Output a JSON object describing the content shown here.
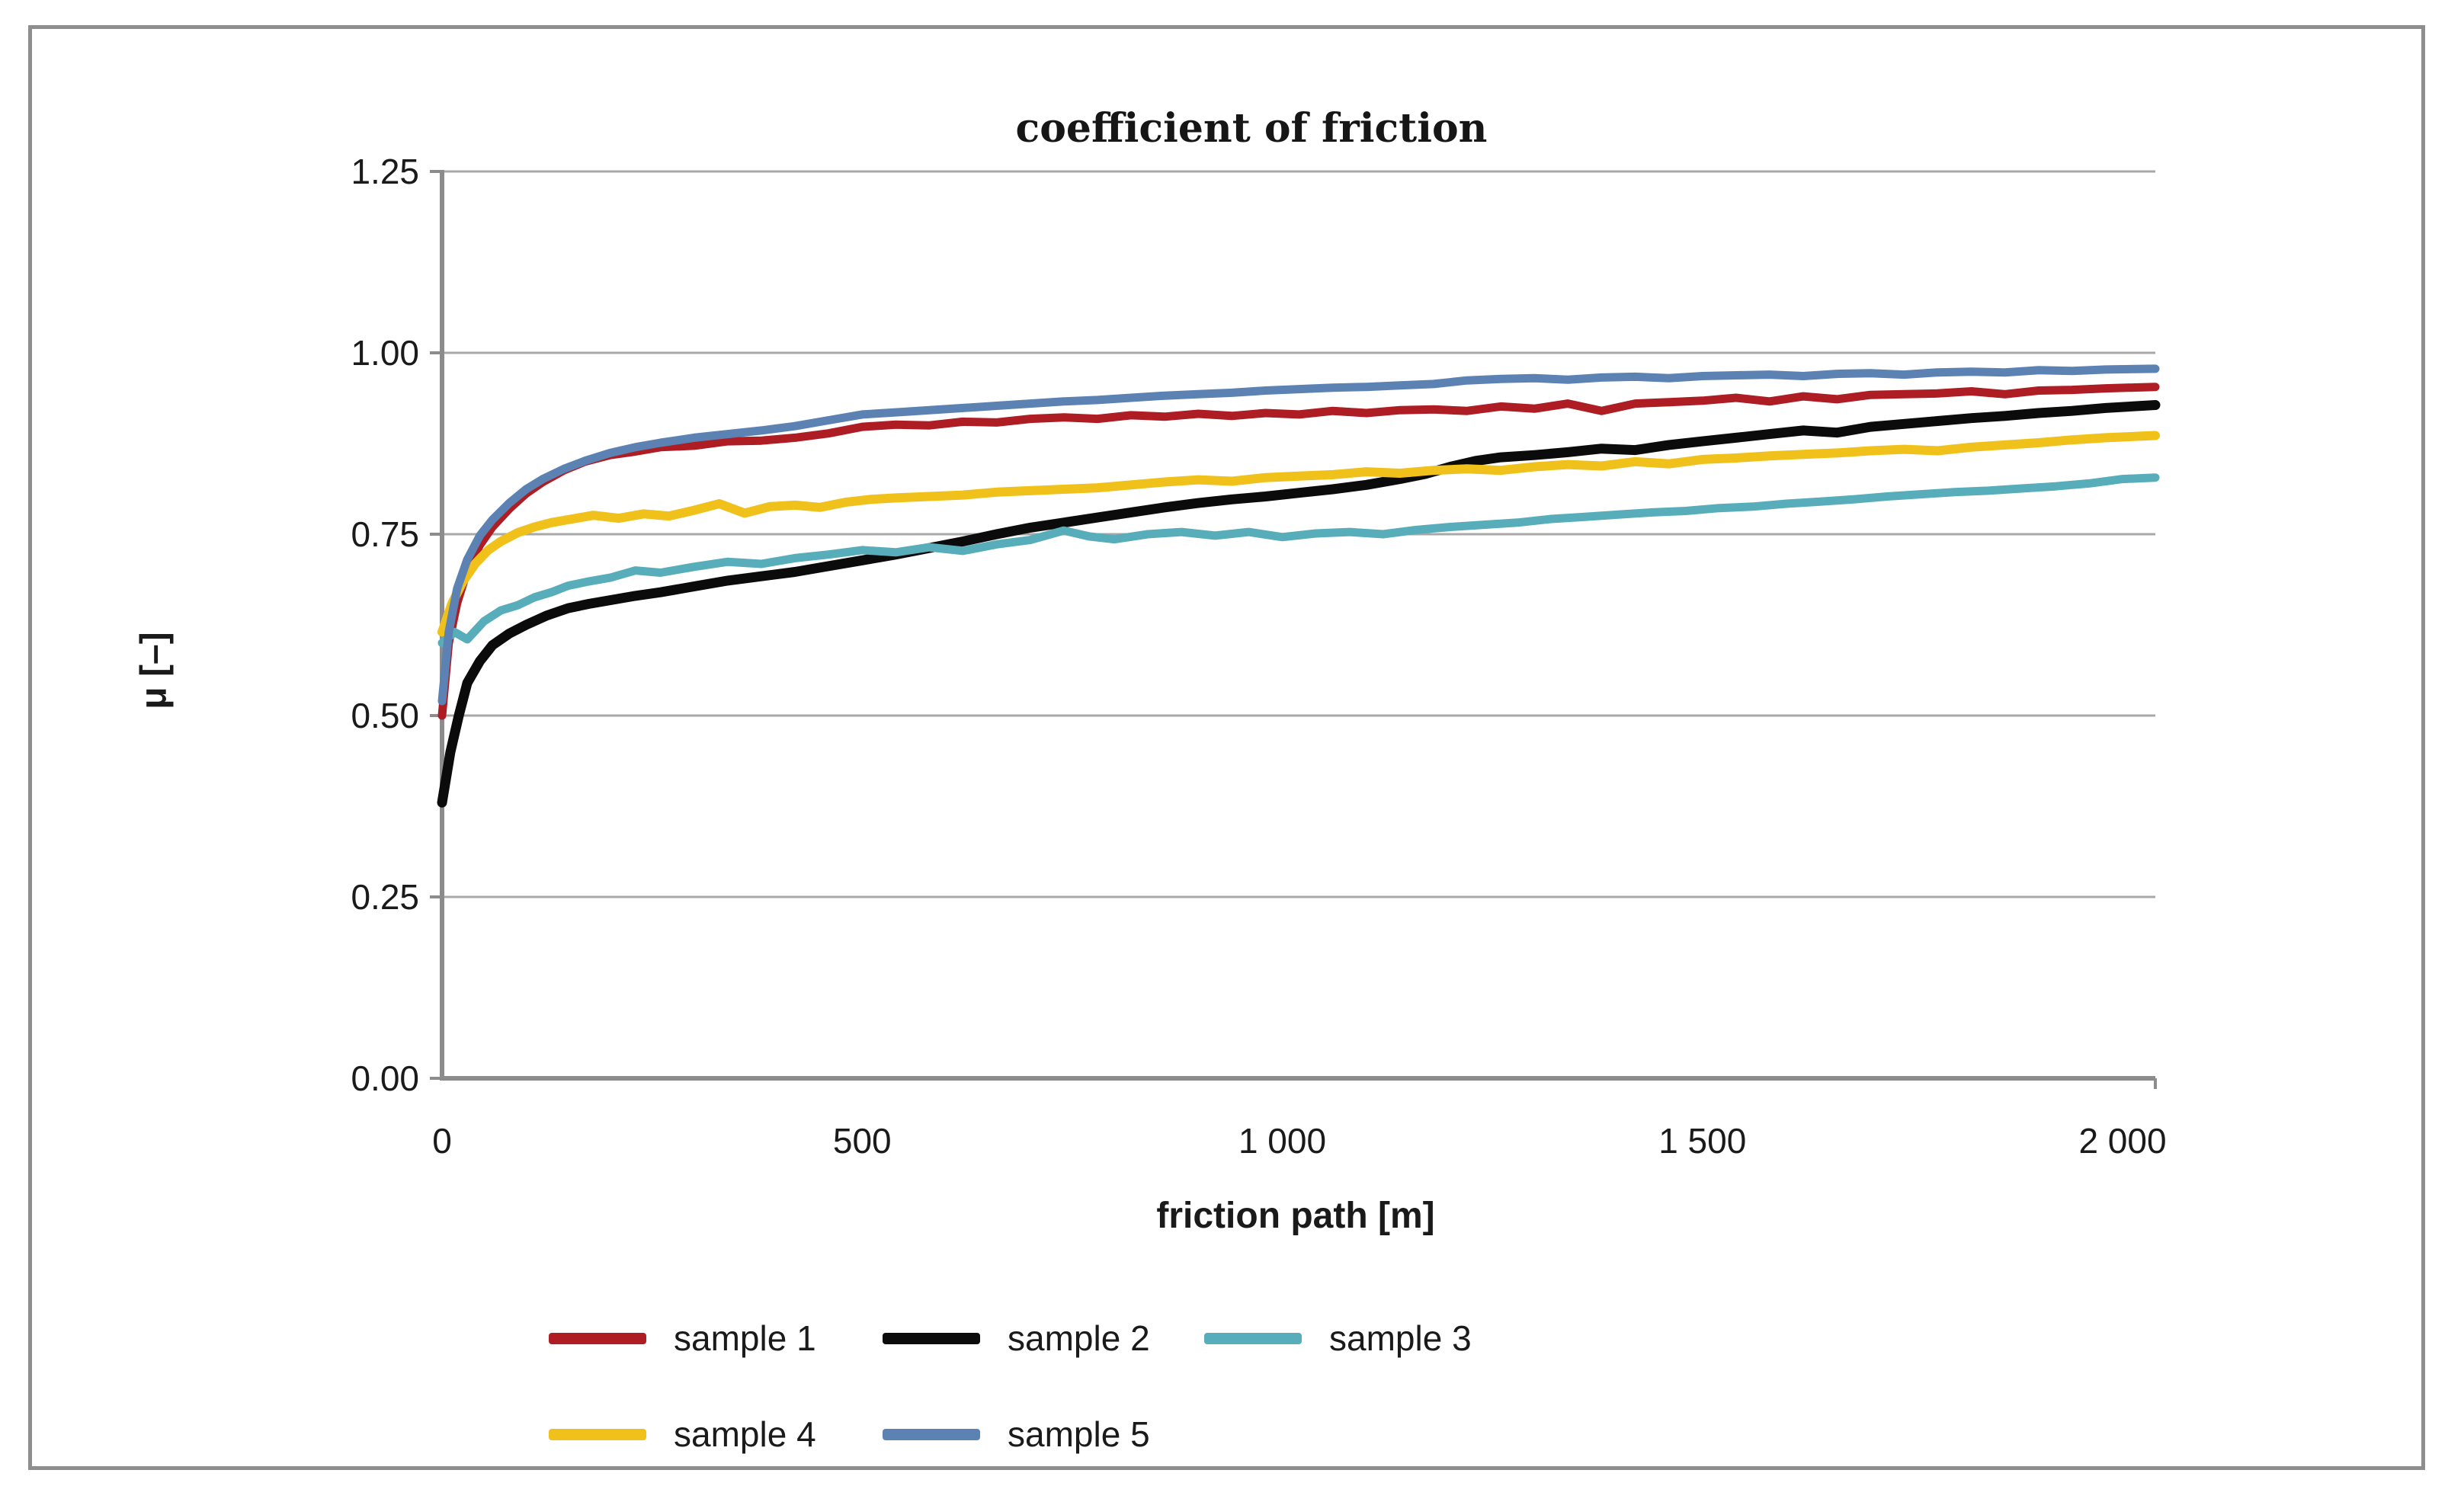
{
  "figure": {
    "title": "coefficient of friction",
    "x_axis": {
      "label": "friction path [m]",
      "ticks": [
        {
          "value": 0,
          "label": "0"
        },
        {
          "value": 500,
          "label": "500"
        },
        {
          "value": 1000,
          "label": "1 000"
        },
        {
          "value": 1500,
          "label": "1 500"
        },
        {
          "value": 2000,
          "label": "2 000"
        }
      ]
    },
    "y_axis": {
      "label": "μ [–]",
      "ticks": [
        {
          "value": 0,
          "label": "0.00"
        },
        {
          "value": 0.25,
          "label": "0.25"
        },
        {
          "value": 0.5,
          "label": "0.50"
        },
        {
          "value": 0.75,
          "label": "0.75"
        },
        {
          "value": 1,
          "label": "1.00"
        },
        {
          "value": 1.25,
          "label": "1.25"
        }
      ]
    },
    "colors": {
      "axis": "#8c8c8c",
      "grid": "#a8a8a8",
      "border": "#8e8e8e",
      "text": "#1a1a1a",
      "background": "#ffffff"
    }
  },
  "legend": {
    "rows": [
      [
        0,
        1,
        2
      ],
      [
        3,
        4
      ]
    ]
  },
  "chart_data": {
    "type": "line",
    "title": "coefficient of friction",
    "xlabel": "friction path [m]",
    "ylabel": "μ [–]",
    "xlim": [
      0,
      2039
    ],
    "ylim": [
      0,
      1.25
    ],
    "x_ticks": [
      0,
      500,
      1000,
      1500,
      2000
    ],
    "y_ticks": [
      0,
      0.25,
      0.5,
      0.75,
      1,
      1.25
    ],
    "grid": "horizontal",
    "legend_position": "bottom-left",
    "series": [
      {
        "name": "sample 1",
        "color": "#ae1c24",
        "points": [
          [
            0,
            0.5
          ],
          [
            8,
            0.6
          ],
          [
            18,
            0.655
          ],
          [
            30,
            0.7
          ],
          [
            45,
            0.735
          ],
          [
            60,
            0.76
          ],
          [
            80,
            0.785
          ],
          [
            100,
            0.806
          ],
          [
            120,
            0.822
          ],
          [
            145,
            0.838
          ],
          [
            170,
            0.85
          ],
          [
            200,
            0.859
          ],
          [
            230,
            0.864
          ],
          [
            260,
            0.87
          ],
          [
            300,
            0.872
          ],
          [
            340,
            0.878
          ],
          [
            380,
            0.879
          ],
          [
            420,
            0.883
          ],
          [
            460,
            0.889
          ],
          [
            500,
            0.898
          ],
          [
            540,
            0.901
          ],
          [
            580,
            0.9
          ],
          [
            620,
            0.905
          ],
          [
            660,
            0.904
          ],
          [
            700,
            0.909
          ],
          [
            740,
            0.911
          ],
          [
            780,
            0.909
          ],
          [
            820,
            0.914
          ],
          [
            860,
            0.912
          ],
          [
            900,
            0.916
          ],
          [
            940,
            0.913
          ],
          [
            980,
            0.917
          ],
          [
            1020,
            0.915
          ],
          [
            1060,
            0.92
          ],
          [
            1100,
            0.917
          ],
          [
            1140,
            0.921
          ],
          [
            1180,
            0.922
          ],
          [
            1220,
            0.92
          ],
          [
            1260,
            0.926
          ],
          [
            1300,
            0.923
          ],
          [
            1340,
            0.93
          ],
          [
            1380,
            0.92
          ],
          [
            1420,
            0.93
          ],
          [
            1460,
            0.932
          ],
          [
            1500,
            0.934
          ],
          [
            1540,
            0.938
          ],
          [
            1580,
            0.933
          ],
          [
            1620,
            0.94
          ],
          [
            1660,
            0.936
          ],
          [
            1700,
            0.942
          ],
          [
            1740,
            0.943
          ],
          [
            1780,
            0.944
          ],
          [
            1820,
            0.947
          ],
          [
            1860,
            0.943
          ],
          [
            1900,
            0.948
          ],
          [
            1940,
            0.949
          ],
          [
            1980,
            0.951
          ],
          [
            2039,
            0.953
          ]
        ]
      },
      {
        "name": "sample 2",
        "color": "#0b0b0b",
        "points": [
          [
            0,
            0.38
          ],
          [
            10,
            0.45
          ],
          [
            20,
            0.5
          ],
          [
            30,
            0.545
          ],
          [
            45,
            0.575
          ],
          [
            60,
            0.597
          ],
          [
            80,
            0.613
          ],
          [
            100,
            0.625
          ],
          [
            125,
            0.638
          ],
          [
            150,
            0.648
          ],
          [
            175,
            0.654
          ],
          [
            200,
            0.659
          ],
          [
            230,
            0.665
          ],
          [
            260,
            0.67
          ],
          [
            300,
            0.678
          ],
          [
            340,
            0.686
          ],
          [
            380,
            0.692
          ],
          [
            420,
            0.698
          ],
          [
            460,
            0.706
          ],
          [
            500,
            0.714
          ],
          [
            540,
            0.722
          ],
          [
            580,
            0.731
          ],
          [
            620,
            0.74
          ],
          [
            660,
            0.75
          ],
          [
            700,
            0.759
          ],
          [
            740,
            0.766
          ],
          [
            780,
            0.773
          ],
          [
            820,
            0.78
          ],
          [
            860,
            0.787
          ],
          [
            900,
            0.793
          ],
          [
            940,
            0.798
          ],
          [
            980,
            0.802
          ],
          [
            1020,
            0.807
          ],
          [
            1060,
            0.812
          ],
          [
            1100,
            0.818
          ],
          [
            1140,
            0.826
          ],
          [
            1170,
            0.833
          ],
          [
            1200,
            0.843
          ],
          [
            1230,
            0.851
          ],
          [
            1260,
            0.856
          ],
          [
            1300,
            0.859
          ],
          [
            1340,
            0.863
          ],
          [
            1380,
            0.868
          ],
          [
            1420,
            0.866
          ],
          [
            1460,
            0.873
          ],
          [
            1500,
            0.878
          ],
          [
            1540,
            0.883
          ],
          [
            1580,
            0.888
          ],
          [
            1620,
            0.893
          ],
          [
            1660,
            0.89
          ],
          [
            1700,
            0.898
          ],
          [
            1740,
            0.902
          ],
          [
            1780,
            0.906
          ],
          [
            1820,
            0.91
          ],
          [
            1860,
            0.913
          ],
          [
            1900,
            0.917
          ],
          [
            1940,
            0.92
          ],
          [
            1980,
            0.924
          ],
          [
            2039,
            0.928
          ]
        ]
      },
      {
        "name": "sample 3",
        "color": "#58adba",
        "points": [
          [
            0,
            0.6
          ],
          [
            15,
            0.615
          ],
          [
            30,
            0.605
          ],
          [
            50,
            0.63
          ],
          [
            70,
            0.645
          ],
          [
            90,
            0.652
          ],
          [
            110,
            0.663
          ],
          [
            130,
            0.67
          ],
          [
            150,
            0.679
          ],
          [
            175,
            0.685
          ],
          [
            200,
            0.69
          ],
          [
            230,
            0.7
          ],
          [
            260,
            0.697
          ],
          [
            300,
            0.705
          ],
          [
            340,
            0.712
          ],
          [
            380,
            0.709
          ],
          [
            420,
            0.717
          ],
          [
            460,
            0.722
          ],
          [
            500,
            0.728
          ],
          [
            540,
            0.725
          ],
          [
            580,
            0.732
          ],
          [
            620,
            0.727
          ],
          [
            660,
            0.736
          ],
          [
            700,
            0.742
          ],
          [
            740,
            0.755
          ],
          [
            770,
            0.747
          ],
          [
            800,
            0.743
          ],
          [
            840,
            0.75
          ],
          [
            880,
            0.753
          ],
          [
            920,
            0.748
          ],
          [
            960,
            0.753
          ],
          [
            1000,
            0.746
          ],
          [
            1040,
            0.751
          ],
          [
            1080,
            0.753
          ],
          [
            1120,
            0.75
          ],
          [
            1160,
            0.756
          ],
          [
            1200,
            0.76
          ],
          [
            1240,
            0.763
          ],
          [
            1280,
            0.766
          ],
          [
            1320,
            0.771
          ],
          [
            1360,
            0.774
          ],
          [
            1400,
            0.777
          ],
          [
            1440,
            0.78
          ],
          [
            1480,
            0.782
          ],
          [
            1520,
            0.786
          ],
          [
            1560,
            0.788
          ],
          [
            1600,
            0.792
          ],
          [
            1640,
            0.795
          ],
          [
            1680,
            0.798
          ],
          [
            1720,
            0.802
          ],
          [
            1760,
            0.805
          ],
          [
            1800,
            0.808
          ],
          [
            1840,
            0.81
          ],
          [
            1880,
            0.813
          ],
          [
            1920,
            0.816
          ],
          [
            1960,
            0.82
          ],
          [
            2000,
            0.826
          ],
          [
            2039,
            0.828
          ]
        ]
      },
      {
        "name": "sample 4",
        "color": "#efc11a",
        "points": [
          [
            0,
            0.615
          ],
          [
            12,
            0.655
          ],
          [
            25,
            0.685
          ],
          [
            40,
            0.71
          ],
          [
            55,
            0.728
          ],
          [
            70,
            0.74
          ],
          [
            90,
            0.752
          ],
          [
            110,
            0.76
          ],
          [
            130,
            0.766
          ],
          [
            155,
            0.771
          ],
          [
            180,
            0.776
          ],
          [
            210,
            0.772
          ],
          [
            240,
            0.778
          ],
          [
            270,
            0.775
          ],
          [
            300,
            0.783
          ],
          [
            330,
            0.792
          ],
          [
            360,
            0.779
          ],
          [
            390,
            0.788
          ],
          [
            420,
            0.79
          ],
          [
            450,
            0.787
          ],
          [
            480,
            0.794
          ],
          [
            510,
            0.798
          ],
          [
            540,
            0.8
          ],
          [
            580,
            0.802
          ],
          [
            620,
            0.804
          ],
          [
            660,
            0.808
          ],
          [
            700,
            0.81
          ],
          [
            740,
            0.812
          ],
          [
            780,
            0.814
          ],
          [
            820,
            0.818
          ],
          [
            860,
            0.822
          ],
          [
            900,
            0.825
          ],
          [
            940,
            0.823
          ],
          [
            980,
            0.828
          ],
          [
            1020,
            0.83
          ],
          [
            1060,
            0.832
          ],
          [
            1100,
            0.836
          ],
          [
            1140,
            0.834
          ],
          [
            1180,
            0.838
          ],
          [
            1220,
            0.84
          ],
          [
            1260,
            0.838
          ],
          [
            1300,
            0.843
          ],
          [
            1340,
            0.846
          ],
          [
            1380,
            0.844
          ],
          [
            1420,
            0.85
          ],
          [
            1460,
            0.847
          ],
          [
            1500,
            0.853
          ],
          [
            1540,
            0.855
          ],
          [
            1580,
            0.858
          ],
          [
            1620,
            0.86
          ],
          [
            1660,
            0.862
          ],
          [
            1700,
            0.865
          ],
          [
            1740,
            0.867
          ],
          [
            1780,
            0.865
          ],
          [
            1820,
            0.87
          ],
          [
            1860,
            0.873
          ],
          [
            1900,
            0.876
          ],
          [
            1940,
            0.88
          ],
          [
            1980,
            0.883
          ],
          [
            2039,
            0.886
          ]
        ]
      },
      {
        "name": "sample 5",
        "color": "#5c82b3",
        "points": [
          [
            0,
            0.52
          ],
          [
            8,
            0.615
          ],
          [
            18,
            0.675
          ],
          [
            30,
            0.715
          ],
          [
            45,
            0.748
          ],
          [
            60,
            0.77
          ],
          [
            80,
            0.793
          ],
          [
            100,
            0.812
          ],
          [
            120,
            0.826
          ],
          [
            145,
            0.84
          ],
          [
            170,
            0.851
          ],
          [
            200,
            0.862
          ],
          [
            230,
            0.87
          ],
          [
            260,
            0.876
          ],
          [
            300,
            0.883
          ],
          [
            340,
            0.888
          ],
          [
            380,
            0.893
          ],
          [
            420,
            0.899
          ],
          [
            460,
            0.907
          ],
          [
            500,
            0.915
          ],
          [
            540,
            0.918
          ],
          [
            580,
            0.921
          ],
          [
            620,
            0.924
          ],
          [
            660,
            0.927
          ],
          [
            700,
            0.93
          ],
          [
            740,
            0.933
          ],
          [
            780,
            0.935
          ],
          [
            820,
            0.938
          ],
          [
            860,
            0.941
          ],
          [
            900,
            0.943
          ],
          [
            940,
            0.945
          ],
          [
            980,
            0.948
          ],
          [
            1020,
            0.95
          ],
          [
            1060,
            0.952
          ],
          [
            1100,
            0.953
          ],
          [
            1140,
            0.955
          ],
          [
            1180,
            0.957
          ],
          [
            1220,
            0.962
          ],
          [
            1260,
            0.964
          ],
          [
            1300,
            0.965
          ],
          [
            1340,
            0.963
          ],
          [
            1380,
            0.966
          ],
          [
            1420,
            0.967
          ],
          [
            1460,
            0.965
          ],
          [
            1500,
            0.968
          ],
          [
            1540,
            0.969
          ],
          [
            1580,
            0.97
          ],
          [
            1620,
            0.968
          ],
          [
            1660,
            0.971
          ],
          [
            1700,
            0.972
          ],
          [
            1740,
            0.97
          ],
          [
            1780,
            0.973
          ],
          [
            1820,
            0.974
          ],
          [
            1860,
            0.973
          ],
          [
            1900,
            0.976
          ],
          [
            1940,
            0.975
          ],
          [
            1980,
            0.977
          ],
          [
            2039,
            0.978
          ]
        ]
      }
    ]
  }
}
